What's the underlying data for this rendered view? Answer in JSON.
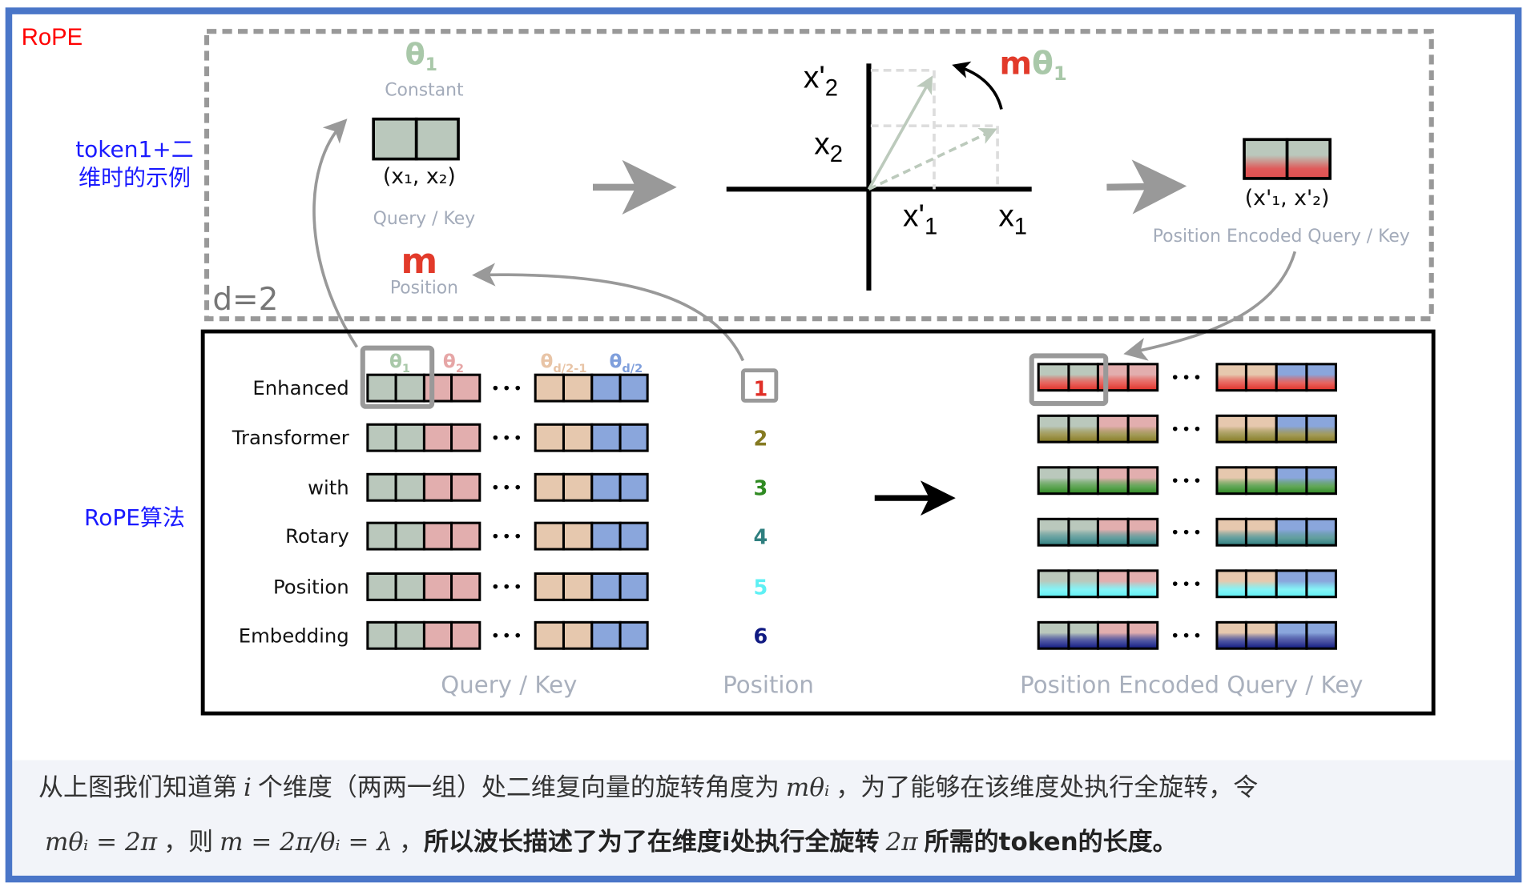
{
  "title": "RoPE",
  "side_labels": {
    "example_line1": "token1+二",
    "example_line2": "维时的示例",
    "algorithm": "RoPE算法"
  },
  "top": {
    "theta": "θ",
    "theta_sub": "1",
    "constant": "Constant",
    "qk_vector": "(x₁, x₂)",
    "qk_label": "Query / Key",
    "m": "m",
    "position": "Position",
    "d_label": "d=2",
    "axis": {
      "x2p": "x'",
      "x2p_sub": "2",
      "x2": "x",
      "x2_sub": "2",
      "x1p": "x'",
      "x1p_sub": "1",
      "x1": "x",
      "x1_sub": "1"
    },
    "rot_m": "m",
    "rot_theta": "θ",
    "rot_sub": "1",
    "encoded_vector": "(x'₁, x'₂)",
    "encoded_label": "Position Encoded Query / Key"
  },
  "bottom": {
    "words": [
      "Enhanced",
      "Transformer",
      "with",
      "Rotary",
      "Position",
      "Embedding"
    ],
    "positions": [
      "1",
      "2",
      "3",
      "4",
      "5",
      "6"
    ],
    "position_colors": [
      "#e03028",
      "#857a22",
      "#2f8a22",
      "#2f7f7f",
      "#5ef0f4",
      "#101a82"
    ],
    "theta_headers": [
      {
        "t": "θ",
        "sub": "1",
        "color": "#a9c8a9"
      },
      {
        "t": "θ",
        "sub": "2",
        "color": "#e6a6a6"
      },
      {
        "t": "θ",
        "sub": "d/2-1",
        "color": "#e8c4a6"
      },
      {
        "t": "θ",
        "sub": "d/2",
        "color": "#7f9fdc"
      }
    ],
    "dim_colors": [
      "#bac8bc",
      "#e2aeae",
      "#e6c8ae",
      "#8aa6dc"
    ],
    "ellipsis": "•••",
    "label_qk": "Query / Key",
    "label_position": "Position",
    "label_encoded": "Position Encoded Query / Key"
  },
  "caption": {
    "l1_a": "从上图我们知道第",
    "l1_i": "i",
    "l1_b": "个维度（两两一组）处二维复向量的旋转角度为",
    "l1_m": "mθᵢ",
    "l1_c": "，为了能够在该维度处执行全旋转，令",
    "l2_m1": "mθᵢ = 2π",
    "l2_a": "，则",
    "l2_m2": "m = 2π/θᵢ = λ",
    "l2_b": "，",
    "l2_bold1": "所以波长描述了为了在维度i处执行全旋转",
    "l2_m3": "2π",
    "l2_bold2": "所需的token的长度。"
  },
  "colors": {
    "frame": "#4a76c8",
    "caption_bg": "#f2f4f9",
    "title": "#ff0000",
    "side_label": "#1a1aff",
    "muted_text": "#a3abba",
    "m_red": "#e23a2a"
  }
}
